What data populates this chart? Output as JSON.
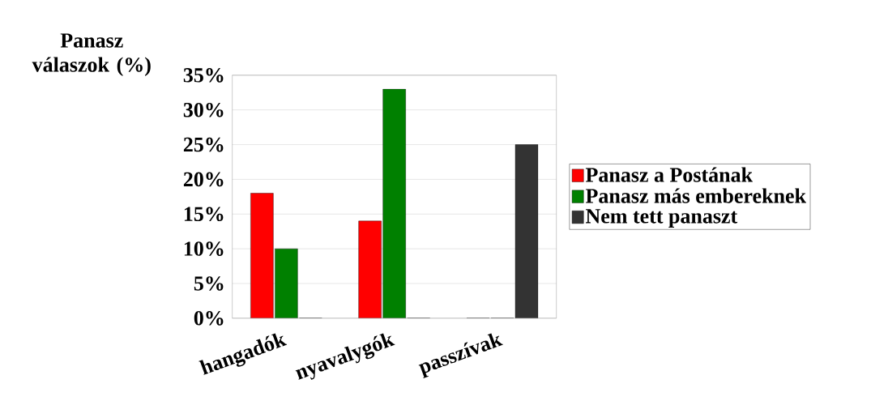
{
  "chart_data": {
    "type": "bar",
    "ylabel": "Panasz válaszok (%)",
    "categories": [
      "hangadók",
      "nyavalygók",
      "passzívak"
    ],
    "series": [
      {
        "name": "Panasz a Postának",
        "color": "#ff0000",
        "values": [
          18,
          14,
          0
        ]
      },
      {
        "name": "Panasz más embereknek",
        "color": "#008000",
        "values": [
          10,
          33,
          0
        ]
      },
      {
        "name": "Nem tett panaszt",
        "color": "#333333",
        "values": [
          0,
          0,
          25
        ]
      }
    ],
    "ylim": [
      0,
      35
    ],
    "yticks": [
      {
        "value": 0,
        "label": "0%"
      },
      {
        "value": 5,
        "label": "5%"
      },
      {
        "value": 10,
        "label": "10%"
      },
      {
        "value": 15,
        "label": "15%"
      },
      {
        "value": 20,
        "label": "20%"
      },
      {
        "value": 25,
        "label": "25%"
      },
      {
        "value": 30,
        "label": "30%"
      },
      {
        "value": 35,
        "label": "35%"
      }
    ],
    "grid": "y",
    "legend": "right"
  }
}
